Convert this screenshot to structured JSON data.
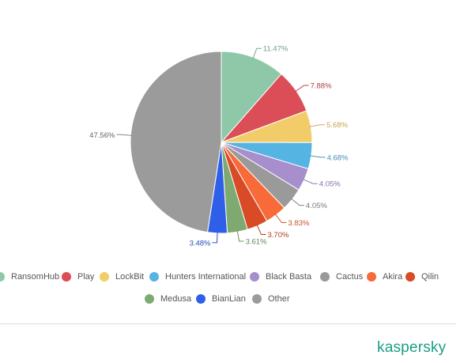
{
  "chart_data": {
    "type": "pie",
    "title": "",
    "slices": [
      {
        "label": "RansomHub",
        "value": 11.47,
        "value_text": "11.47%",
        "color": "#8ec8a9"
      },
      {
        "label": "Play",
        "value": 7.88,
        "value_text": "7.88%",
        "color": "#dc4e57"
      },
      {
        "label": "LockBit",
        "value": 5.68,
        "value_text": "5.68%",
        "color": "#f2cc68"
      },
      {
        "label": "Hunters International",
        "value": 4.68,
        "value_text": "4.68%",
        "color": "#56b4e3"
      },
      {
        "label": "Black Basta",
        "value": 4.05,
        "value_text": "4.05%",
        "color": "#a78fcd"
      },
      {
        "label": "Cactus",
        "value": 4.05,
        "value_text": "4.05%",
        "color": "#9a9a9a"
      },
      {
        "label": "Akira",
        "value": 3.83,
        "value_text": "3.83%",
        "color": "#f86a38"
      },
      {
        "label": "Qilin",
        "value": 3.7,
        "value_text": "3.70%",
        "color": "#d94a26"
      },
      {
        "label": "Medusa",
        "value": 3.61,
        "value_text": "3.61%",
        "color": "#7eaa72"
      },
      {
        "label": "BianLian",
        "value": 3.48,
        "value_text": "3.48%",
        "color": "#2f5fe8"
      },
      {
        "label": "Other",
        "value": 47.56,
        "value_text": "47.56%",
        "color": "#9b9b9b"
      }
    ],
    "legend_position": "bottom",
    "legend_rows": [
      [
        "RansomHub",
        "Play",
        "LockBit",
        "Hunters International",
        "Black Basta",
        "Cactus",
        "Akira",
        "Qilin"
      ],
      [
        "Medusa",
        "BianLian",
        "Other"
      ]
    ]
  },
  "brand": {
    "logo_text": "kaspersky",
    "color": "#1a9e84"
  }
}
